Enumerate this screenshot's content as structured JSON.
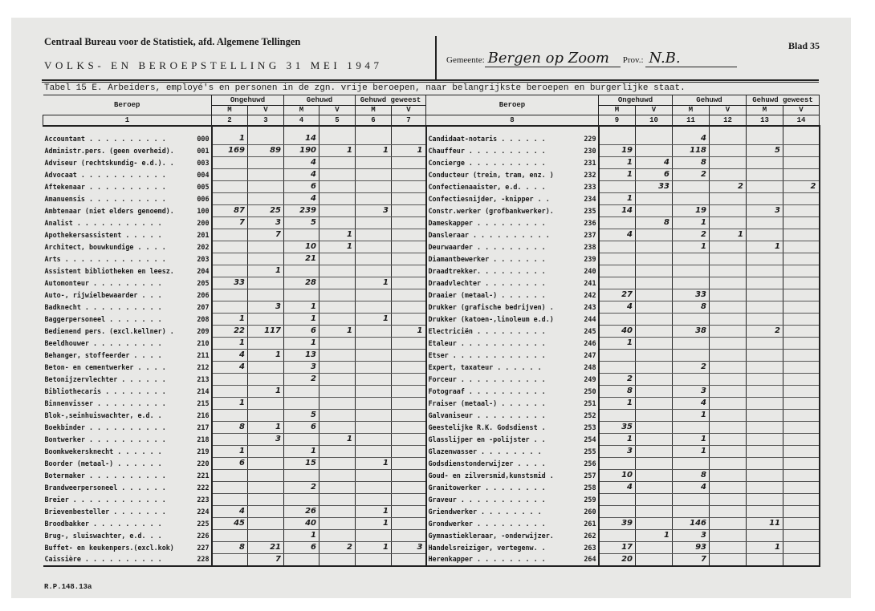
{
  "header": {
    "organization": "Centraal Bureau voor de Statistiek, afd. Algemene Tellingen",
    "census_title": "VOLKS- EN BEROEPSTELLING 31 MEI 1947",
    "gemeente_label": "Gemeente:",
    "gemeente_value": "Bergen op Zoom",
    "prov_label": "Prov.:",
    "prov_value": "N.B.",
    "sheet": "Blad 35"
  },
  "table_title": "Tabel 15 E. Arbeiders, employé's en personen in de zgn. vrije beroepen, naar belangrijkste beroepen en burgerlijke staat.",
  "columns": {
    "beroep": "Beroep",
    "groups": [
      "Ongehuwd",
      "Gehuwd",
      "Gehuwd geweest"
    ],
    "sex": [
      "M",
      "V"
    ],
    "left_numbers": [
      "1",
      "2",
      "3",
      "4",
      "5",
      "6",
      "7"
    ],
    "right_numbers": [
      "8",
      "9",
      "10",
      "11",
      "12",
      "13",
      "14"
    ]
  },
  "left_rows": [
    [
      "Accountant . . . . . . . . . .",
      "000",
      "1",
      "",
      "14",
      "",
      "",
      ""
    ],
    [
      "Administr.pers. (geen overheid).",
      "001",
      "169",
      "89",
      "190",
      "1",
      "1",
      "1"
    ],
    [
      "Adviseur (rechtskundig- e.d.). .",
      "003",
      "",
      "",
      "4",
      "",
      "",
      ""
    ],
    [
      "Advocaat . . . . . . . . . . .",
      "004",
      "",
      "",
      "4",
      "",
      "",
      ""
    ],
    [
      "Aftekenaar . . . . . . . . . .",
      "005",
      "",
      "",
      "6",
      "",
      "",
      ""
    ],
    [
      "Amanuensis . . . . . . . . . .",
      "006",
      "",
      "",
      "4",
      "",
      "",
      ""
    ],
    [
      "Ambtenaar (niet elders genoemd).",
      "100",
      "87",
      "25",
      "239",
      "",
      "3",
      ""
    ],
    [
      "Analist  . . . . . . . . . . .",
      "200",
      "7",
      "3",
      "5",
      "",
      "",
      ""
    ],
    [
      "Apothekersassistent  . . . . .",
      "201",
      "",
      "7",
      "",
      "1",
      "",
      ""
    ],
    [
      "Architect, bouwkundige . . . .",
      "202",
      "",
      "",
      "10",
      "1",
      "",
      ""
    ],
    [
      "Arts . . . . . . . . . . . . .",
      "203",
      "",
      "",
      "21",
      "",
      "",
      ""
    ],
    [
      "Assistent bibliotheken en leesz.",
      "204",
      "",
      "1",
      "",
      "",
      "",
      ""
    ],
    [
      "Automonteur  . . . . . . . . .",
      "205",
      "33",
      "",
      "28",
      "",
      "1",
      ""
    ],
    [
      "Auto-, rijwielbewaarder  . . .",
      "206",
      "",
      "",
      "",
      "",
      "",
      ""
    ],
    [
      "Badknecht  . . . . . . . . . .",
      "207",
      "",
      "3",
      "1",
      "",
      "",
      ""
    ],
    [
      "Baggerpersoneel  . . . . . . .",
      "208",
      "1",
      "",
      "1",
      "",
      "1",
      ""
    ],
    [
      "Bedienend pers. (excl.kellner) .",
      "209",
      "22",
      "117",
      "6",
      "1",
      "",
      "1"
    ],
    [
      "Beeldhouwer  . . . . . . . . .",
      "210",
      "1",
      "",
      "1",
      "",
      "",
      ""
    ],
    [
      "Behanger, stoffeerder  . . . .",
      "211",
      "4",
      "1",
      "13",
      "",
      "",
      ""
    ],
    [
      "Beton- en cementwerker . . . .",
      "212",
      "4",
      "",
      "3",
      "",
      "",
      ""
    ],
    [
      "Betonijzervlechter . . . . . .",
      "213",
      "",
      "",
      "2",
      "",
      "",
      ""
    ],
    [
      "Bibliothecaris . . . . . . . .",
      "214",
      "",
      "1",
      "",
      "",
      "",
      ""
    ],
    [
      "Binnenvisser . . . . . . . . .",
      "215",
      "1",
      "",
      "",
      "",
      "",
      ""
    ],
    [
      "Blok-,seinhuiswachter, e.d.  .",
      "216",
      "",
      "",
      "5",
      "",
      "",
      ""
    ],
    [
      "Boekbinder . . . . . . . . . .",
      "217",
      "8",
      "1",
      "6",
      "",
      "",
      ""
    ],
    [
      "Bontwerker . . . . . . . . . .",
      "218",
      "",
      "3",
      "",
      "1",
      "",
      ""
    ],
    [
      "Boomkwekersknecht  . . . . . .",
      "219",
      "1",
      "",
      "1",
      "",
      "",
      ""
    ],
    [
      "Boorder (metaal-)  . . . . . .",
      "220",
      "6",
      "",
      "15",
      "",
      "1",
      ""
    ],
    [
      "Botermaker . . . . . . . . . .",
      "221",
      "",
      "",
      "",
      "",
      "",
      ""
    ],
    [
      "Brandweerpersoneel . . . . . .",
      "222",
      "",
      "",
      "2",
      "",
      "",
      ""
    ],
    [
      "Breier . . . . . . . . . . . .",
      "223",
      "",
      "",
      "",
      "",
      "",
      ""
    ],
    [
      "Brievenbesteller . . . . . . .",
      "224",
      "4",
      "",
      "26",
      "",
      "1",
      ""
    ],
    [
      "Broodbakker  . . . . . . . . .",
      "225",
      "45",
      "",
      "40",
      "",
      "1",
      ""
    ],
    [
      "Brug-, sluiswachter, e.d.  . .",
      "226",
      "",
      "",
      "1",
      "",
      "",
      ""
    ],
    [
      "Buffet- en keukenpers.(excl.kok)",
      "227",
      "8",
      "21",
      "6",
      "2",
      "1",
      "3"
    ],
    [
      "Caissière  . . . . . . . . . .",
      "228",
      "",
      "7",
      "",
      "",
      "",
      ""
    ]
  ],
  "right_rows": [
    [
      "Candidaat-notaris  . . . . . .",
      "229",
      "",
      "",
      "4",
      "",
      "",
      ""
    ],
    [
      "Chauffeur  . . . . . . . . . .",
      "230",
      "19",
      "",
      "118",
      "",
      "5",
      ""
    ],
    [
      "Concierge  . . . . . . . . . .",
      "231",
      "1",
      "4",
      "8",
      "",
      "",
      ""
    ],
    [
      "Conducteur (trein, tram, enz. )",
      "232",
      "1",
      "6",
      "2",
      "",
      "",
      ""
    ],
    [
      "Confectienaaister, e.d.  . . .",
      "233",
      "",
      "33",
      "",
      "2",
      "",
      "2"
    ],
    [
      "Confectiesnijder, -knipper  . .",
      "234",
      "1",
      "",
      "",
      "",
      "",
      ""
    ],
    [
      "Constr.werker (grofbankwerker).",
      "235",
      "14",
      "",
      "19",
      "",
      "3",
      ""
    ],
    [
      "Dameskapper  . . . . . . . . .",
      "236",
      "",
      "8",
      "1",
      "",
      "",
      ""
    ],
    [
      "Dansleraar . . . . . . . . . .",
      "237",
      "4",
      "",
      "2",
      "1",
      "",
      ""
    ],
    [
      "Deurwaarder  . . . . . . . . .",
      "238",
      "",
      "",
      "1",
      "",
      "1",
      ""
    ],
    [
      "Diamantbewerker  . . . . . . .",
      "239",
      "",
      "",
      "",
      "",
      "",
      ""
    ],
    [
      "Draadtrekker.  . . . . . . . .",
      "240",
      "",
      "",
      "",
      "",
      "",
      ""
    ],
    [
      "Draadvlechter  . . . . . . . .",
      "241",
      "",
      "",
      "",
      "",
      "",
      ""
    ],
    [
      "Draaier (metaal-)  . . . . . .",
      "242",
      "27",
      "",
      "33",
      "",
      "",
      ""
    ],
    [
      "Drukker (grafische bedrijven) .",
      "243",
      "4",
      "",
      "8",
      "",
      "",
      ""
    ],
    [
      "Drukker (katoen-,linoleum e.d.)",
      "244",
      "",
      "",
      "",
      "",
      "",
      ""
    ],
    [
      "Electriciën  . . . . . . . . .",
      "245",
      "40",
      "",
      "38",
      "",
      "2",
      ""
    ],
    [
      "Etaleur  . . . . . . . . . . .",
      "246",
      "1",
      "",
      "",
      "",
      "",
      ""
    ],
    [
      "Etser  . . . . . . . . . . . .",
      "247",
      "",
      "",
      "",
      "",
      "",
      ""
    ],
    [
      "Expert, taxateur  . . . . . .",
      "248",
      "",
      "",
      "2",
      "",
      "",
      ""
    ],
    [
      "Forceur  . . . . . . . . . . .",
      "249",
      "2",
      "",
      "",
      "",
      "",
      ""
    ],
    [
      "Fotograaf  . . . . . . . . . .",
      "250",
      "8",
      "",
      "3",
      "",
      "",
      ""
    ],
    [
      "Fraiser (metaal-)  . . . . . .",
      "251",
      "1",
      "",
      "4",
      "",
      "",
      ""
    ],
    [
      "Galvaniseur  . . . . . . . . .",
      "252",
      "",
      "",
      "1",
      "",
      "",
      ""
    ],
    [
      "Geestelijke R.K. Godsdienst  .",
      "253",
      "35",
      "",
      "",
      "",
      "",
      ""
    ],
    [
      "Glasslijper en -polijster  . .",
      "254",
      "1",
      "",
      "1",
      "",
      "",
      ""
    ],
    [
      "Glazenwasser  . . . . . . . .",
      "255",
      "3",
      "",
      "1",
      "",
      "",
      ""
    ],
    [
      "Godsdienstonderwijzer  . . . .",
      "256",
      "",
      "",
      "",
      "",
      "",
      ""
    ],
    [
      "Goud- en zilversmid,kunstsmid .",
      "257",
      "10",
      "",
      "8",
      "",
      "",
      ""
    ],
    [
      "Granitowerker  . . . . . . . .",
      "258",
      "4",
      "",
      "4",
      "",
      "",
      ""
    ],
    [
      "Graveur  . . . . . . . . . . .",
      "259",
      "",
      "",
      "",
      "",
      "",
      ""
    ],
    [
      "Griendwerker  . . . . . . . .",
      "260",
      "",
      "",
      "",
      "",
      "",
      ""
    ],
    [
      "Grondwerker  . . . . . . . . .",
      "261",
      "39",
      "",
      "146",
      "",
      "11",
      ""
    ],
    [
      "Gymnastiekleraar, -onderwijzer.",
      "262",
      "",
      "1",
      "3",
      "",
      "",
      ""
    ],
    [
      "Handelsreiziger, vertegenw.  .",
      "263",
      "17",
      "",
      "93",
      "",
      "1",
      ""
    ],
    [
      "Herenkapper  . . . . . . . . .",
      "264",
      "20",
      "",
      "7",
      "",
      "",
      ""
    ]
  ],
  "footer": "R.P.148.13a"
}
